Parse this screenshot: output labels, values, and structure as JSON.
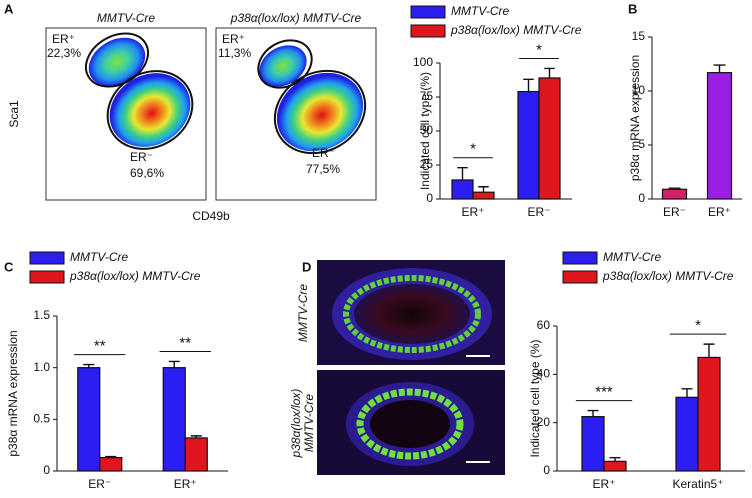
{
  "panels": {
    "a": "A",
    "b": "B",
    "c": "C",
    "d": "D"
  },
  "flow": {
    "y_label": "Sca1",
    "x_label": "CD49b",
    "plots": [
      {
        "title": "MMTV-Cre",
        "er_pos": "ER⁺",
        "er_pos_pct": "22,3%",
        "er_neg": "ER⁻",
        "er_neg_pct": "69,6%"
      },
      {
        "title": "p38α(lox/lox) MMTV-Cre",
        "er_pos": "ER⁺",
        "er_pos_pct": "11,3%",
        "er_neg": "ER⁻",
        "er_neg_pct": "77,5%"
      }
    ]
  },
  "images": {
    "top_label": "MMTV-Cre",
    "bottom_label_1": "p38α(lox/lox)",
    "bottom_label_2": "MMTV-Cre"
  },
  "chart_data": [
    {
      "type": "bar",
      "ylabel": "Indicated cell type (%)",
      "categories": [
        "ER⁺",
        "ER⁻"
      ],
      "series": [
        {
          "name": "MMTV-Cre",
          "color": "#2a1ff0",
          "values": [
            14,
            79
          ],
          "errors": [
            9,
            9
          ]
        },
        {
          "name": "p38α(lox/lox) MMTV-Cre",
          "color": "#e0161e",
          "values": [
            5,
            89
          ],
          "errors": [
            4,
            7
          ]
        }
      ],
      "significance": [
        "*",
        "*"
      ],
      "ylim": [
        0,
        100
      ],
      "yticks": [
        0,
        25,
        50,
        75,
        100
      ]
    },
    {
      "type": "bar",
      "ylabel": "p38α mRNA expression",
      "categories": [
        "ER⁻",
        "ER⁺"
      ],
      "series": [
        {
          "colors": [
            "#d8206a",
            "#9a1fe0"
          ],
          "values": [
            0.9,
            11.7
          ],
          "errors": [
            0.1,
            0.7
          ]
        }
      ],
      "ylim": [
        0,
        15
      ],
      "yticks": [
        0,
        5,
        10,
        15
      ]
    },
    {
      "type": "bar",
      "ylabel": "p38α mRNA expression",
      "categories": [
        "ER⁻",
        "ER⁺"
      ],
      "series": [
        {
          "name": "MMTV-Cre",
          "color": "#2a1ff0",
          "values": [
            1.0,
            1.0
          ],
          "errors": [
            0.03,
            0.06
          ]
        },
        {
          "name": "p38α(lox/lox) MMTV-Cre",
          "color": "#e0161e",
          "values": [
            0.13,
            0.32
          ],
          "errors": [
            0.01,
            0.02
          ]
        }
      ],
      "significance": [
        "**",
        "**"
      ],
      "ylim": [
        0,
        1.5
      ],
      "yticks": [
        0,
        0.5,
        {
          "value": 1,
          "label": "1.0"
        },
        1.5
      ]
    },
    {
      "type": "bar",
      "ylabel": "Indicated cell type (%)",
      "categories": [
        "ER⁺",
        "Keratin5⁺"
      ],
      "series": [
        {
          "name": "MMTV-Cre",
          "color": "#2a1ff0",
          "values": [
            22.5,
            30.5
          ],
          "errors": [
            2.5,
            3.5
          ]
        },
        {
          "name": "p38α(lox/lox) MMTV-Cre",
          "color": "#e0161e",
          "values": [
            4,
            47
          ],
          "errors": [
            1.5,
            5.5
          ]
        }
      ],
      "significance": [
        "***",
        "*"
      ],
      "ylim": [
        0,
        60
      ],
      "yticks": [
        0,
        20,
        40,
        60
      ]
    }
  ]
}
